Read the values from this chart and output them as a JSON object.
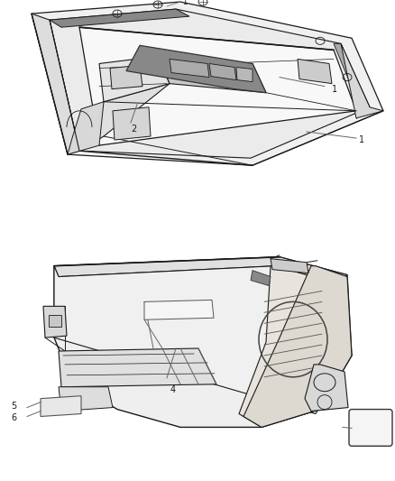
{
  "figsize": [
    4.38,
    5.33
  ],
  "dpi": 100,
  "bg": "#ffffff",
  "lc": "#1a1a1a",
  "gray1": "#e8e8e8",
  "gray2": "#d0d0d0",
  "gray3": "#b0b0b0"
}
